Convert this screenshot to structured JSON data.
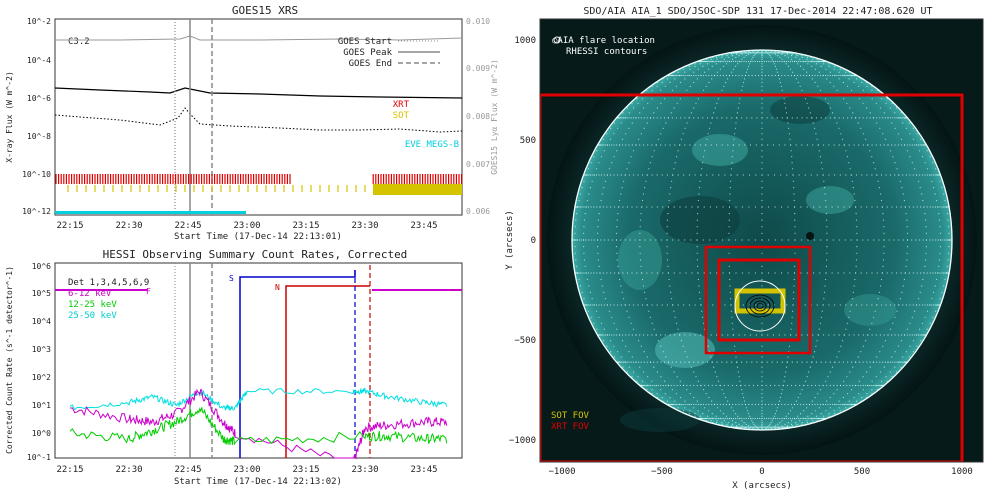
{
  "chart_data": [
    {
      "type": "line",
      "title": "GOES15 XRS",
      "xlabel": "Start Time (17-Dec-14 22:13:01)",
      "ylabel": "X-ray Flux (W m^-2)",
      "ylabel_right": "GOES15 Lyα Flux (W m^-2)",
      "x_ticks": [
        "22:15",
        "22:30",
        "22:45",
        "23:00",
        "23:15",
        "23:30",
        "23:45"
      ],
      "y_ticks": [
        "10^-2",
        "10^-4",
        "10^-6",
        "10^-8",
        "10^-10",
        "10^-12"
      ],
      "y_ticks_right": [
        "0.010",
        "0.009",
        "0.008",
        "0.007",
        "0.006"
      ],
      "flare_class": "C3.2",
      "markers": [
        {
          "name": "GOES Start",
          "time": "22:42"
        },
        {
          "name": "GOES Peak",
          "time": "22:48"
        },
        {
          "name": "GOES End",
          "time": "22:54"
        }
      ],
      "series": [
        {
          "name": "Lyα (gray, right axis)",
          "color": "#999999",
          "x": [
            22.25,
            22.5,
            22.75,
            22.8,
            23.0,
            23.25,
            23.5,
            23.75,
            23.85
          ],
          "y": [
            0.0098,
            0.0098,
            0.0098,
            0.0099,
            0.0098,
            0.0098,
            0.0098,
            0.0099,
            0.0099
          ]
        },
        {
          "name": "XRS long",
          "color": "#000000",
          "x": [
            22.25,
            22.5,
            22.6,
            22.75,
            22.8,
            22.9,
            23.0,
            23.25,
            23.5,
            23.75,
            23.85
          ],
          "y": [
            -6.2,
            -6.35,
            -6.4,
            -6.4,
            -6.2,
            -6.35,
            -6.45,
            -6.55,
            -6.55,
            -6.6,
            -6.6
          ]
        },
        {
          "name": "XRS short",
          "color": "#000000",
          "x": [
            22.25,
            22.5,
            22.6,
            22.75,
            22.8,
            22.9,
            23.0,
            23.25,
            23.5,
            23.75,
            23.85
          ],
          "y": [
            -7.6,
            -7.9,
            -8.0,
            -7.9,
            -7.4,
            -7.8,
            -8.0,
            -8.1,
            -8.2,
            -8.2,
            -8.2
          ]
        }
      ],
      "legend": [
        {
          "label": "GOES Start",
          "style": "dotted"
        },
        {
          "label": "GOES Peak",
          "style": "solid"
        },
        {
          "label": "GOES End",
          "style": "dashed"
        }
      ],
      "instrument_labels": [
        {
          "label": "XRT",
          "color": "#e00000"
        },
        {
          "label": "SOT",
          "color": "#d4c400"
        },
        {
          "label": "EVE MEGS-B",
          "color": "#00cfe0"
        }
      ]
    },
    {
      "type": "line",
      "title": "HESSI Observing Summary Count Rates, Corrected",
      "xlabel": "Start Time (17-Dec-14 22:13:02)",
      "ylabel": "Corrected Count Rate (s^-1 detector^-1)",
      "x_ticks": [
        "22:15",
        "22:30",
        "22:45",
        "23:00",
        "23:15",
        "23:30",
        "23:45"
      ],
      "y_ticks": [
        "10^6",
        "10^5",
        "10^4",
        "10^3",
        "10^2",
        "10^1",
        "10^0",
        "10^-1"
      ],
      "detectors": "Det 1,3,4,5,6,9",
      "flags": [
        {
          "label": "F",
          "color": "#cc00cc"
        },
        {
          "label": "S",
          "color": "#0000cc"
        },
        {
          "label": "N",
          "color": "#cc0000"
        }
      ],
      "series": [
        {
          "name": "6-12 keV",
          "color": "#cc00cc",
          "x": [
            22.25,
            22.5,
            22.6,
            22.7,
            22.8,
            22.9,
            22.95,
            23.45,
            23.5,
            23.6,
            23.75,
            23.85
          ],
          "y": [
            1.0,
            0.6,
            0.5,
            0.8,
            1.6,
            0.5,
            0.1,
            -1,
            0.3,
            0.4,
            0.5,
            0.5
          ]
        },
        {
          "name": "12-25 keV",
          "color": "#00cc00",
          "x": [
            22.25,
            22.5,
            22.6,
            22.7,
            22.8,
            22.9,
            22.95,
            23.5,
            23.6,
            23.75,
            23.85
          ],
          "y": [
            0.1,
            -0.1,
            0.2,
            0.5,
            1.0,
            -0.1,
            -0.2,
            0.0,
            0.0,
            -0.1,
            -0.1
          ]
        },
        {
          "name": "25-50 keV",
          "color": "#00e0e0",
          "x": [
            22.25,
            22.5,
            22.6,
            22.7,
            22.8,
            22.9,
            22.95,
            23.0,
            23.45,
            23.5,
            23.6,
            23.75,
            23.85
          ],
          "y": [
            1.0,
            1.2,
            1.4,
            1.1,
            1.6,
            1.0,
            1.0,
            1.6,
            1.6,
            1.6,
            1.4,
            1.2,
            1.1
          ]
        }
      ]
    },
    {
      "type": "image",
      "title": "SDO/AIA AIA_1 SDO/JSOC-SDP 131 17-Dec-2014 22:47:08.620 UT",
      "xlabel": "X (arcsecs)",
      "ylabel": "Y (arcsecs)",
      "x_ticks": [
        "−1000",
        "−500",
        "0",
        "500",
        "1000"
      ],
      "y_ticks": [
        "1000",
        "500",
        "0",
        "−500",
        "−1000"
      ],
      "xlim": [
        -1100,
        1100
      ],
      "ylim": [
        -1100,
        1100
      ],
      "legend_top": [
        "○AIA flare location",
        "RHESSI contours"
      ],
      "legend_bottom": [
        {
          "label": "SOT FOV",
          "color": "#d4c400"
        },
        {
          "label": "XRT FOV",
          "color": "#e00000"
        }
      ],
      "flare_location_arcsec": [
        -20,
        -340
      ]
    }
  ]
}
